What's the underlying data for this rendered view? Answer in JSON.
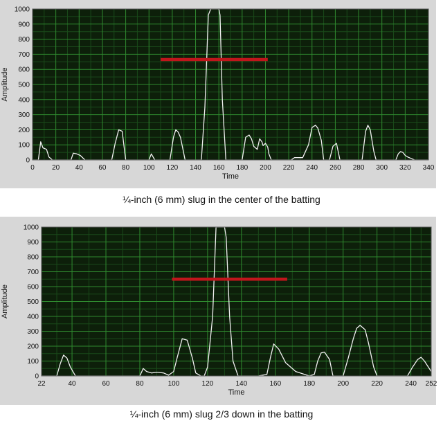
{
  "colors": {
    "panel_bg": "#d7d7d7",
    "plot_bg": "#0d1f0a",
    "grid_major": "#2f8a2f",
    "grid_minor": "#1a4a1a",
    "trace": "#f0f0f0",
    "threshold": "#c0161c"
  },
  "chart_data": [
    {
      "type": "line",
      "title": "",
      "xlabel": "Time",
      "ylabel": "Amplitude",
      "xlim": [
        0,
        340
      ],
      "ylim": [
        0,
        1000
      ],
      "xticks": [
        0,
        20,
        40,
        60,
        80,
        100,
        120,
        140,
        160,
        180,
        200,
        220,
        240,
        260,
        280,
        300,
        320,
        340
      ],
      "yticks": [
        0,
        100,
        200,
        300,
        400,
        500,
        600,
        700,
        800,
        900,
        1000
      ],
      "grid": true,
      "caption": "¼-inch (6 mm) slug in the center of the batting",
      "threshold": {
        "x_start": 110,
        "x_end": 202,
        "y": 665
      },
      "series": [
        {
          "x": [
            0,
            5,
            7,
            9,
            12,
            14,
            17,
            22,
            33,
            35,
            38,
            41,
            45,
            68,
            71,
            74,
            77,
            80,
            100,
            102,
            105,
            118,
            121,
            123,
            125,
            127,
            131,
            145,
            148,
            151,
            153,
            154,
            158,
            160,
            161,
            163,
            166,
            168,
            180,
            183,
            186,
            188,
            190,
            193,
            195,
            197,
            198,
            200,
            202,
            203,
            205,
            206,
            208,
            222,
            225,
            232,
            237,
            240,
            243,
            245,
            248,
            250,
            255,
            258,
            261,
            264,
            283,
            286,
            288,
            290,
            293,
            295,
            312,
            314,
            316,
            318,
            320,
            322,
            325,
            328,
            340
          ],
          "y": [
            0,
            0,
            120,
            80,
            70,
            20,
            0,
            0,
            0,
            45,
            40,
            30,
            0,
            0,
            110,
            200,
            190,
            0,
            0,
            40,
            0,
            0,
            150,
            200,
            185,
            150,
            0,
            0,
            350,
            960,
            1000,
            1000,
            1000,
            1000,
            960,
            400,
            0,
            0,
            0,
            150,
            165,
            140,
            90,
            70,
            140,
            120,
            95,
            110,
            85,
            40,
            0,
            0,
            0,
            0,
            15,
            15,
            100,
            215,
            230,
            210,
            130,
            0,
            0,
            90,
            110,
            0,
            0,
            190,
            230,
            200,
            60,
            0,
            0,
            40,
            55,
            50,
            30,
            20,
            10,
            0,
            0
          ]
        }
      ]
    },
    {
      "type": "line",
      "title": "",
      "xlabel": "Time",
      "ylabel": "Amplitude",
      "xlim": [
        22,
        252
      ],
      "ylim": [
        0,
        1000
      ],
      "xticks": [
        22,
        40,
        60,
        80,
        100,
        120,
        140,
        160,
        180,
        200,
        220,
        240,
        252
      ],
      "yticks": [
        0,
        100,
        200,
        300,
        400,
        500,
        600,
        700,
        800,
        900,
        1000
      ],
      "grid": true,
      "caption": "¼-inch (6 mm) slug 2/3 down in the batting",
      "threshold": {
        "x_start": 99,
        "x_end": 167,
        "y": 650
      },
      "series": [
        {
          "x": [
            22,
            31,
            33,
            35,
            37,
            39,
            42,
            80,
            82,
            84,
            87,
            90,
            94,
            97,
            100,
            102,
            105,
            108,
            111,
            113,
            116,
            118,
            120,
            123,
            125,
            127,
            130,
            131,
            133,
            135,
            138,
            150,
            155,
            157,
            159,
            162,
            166,
            172,
            180,
            183,
            185,
            187,
            189,
            192,
            194,
            200,
            203,
            206,
            208,
            210,
            213,
            215,
            218,
            220,
            225,
            238,
            241,
            244,
            246,
            248,
            252
          ],
          "y": [
            0,
            0,
            80,
            140,
            120,
            60,
            0,
            0,
            50,
            30,
            20,
            25,
            20,
            5,
            30,
            120,
            250,
            240,
            120,
            20,
            0,
            0,
            60,
            400,
            1000,
            1000,
            1000,
            930,
            400,
            100,
            0,
            0,
            10,
            120,
            215,
            180,
            90,
            30,
            0,
            10,
            100,
            155,
            160,
            110,
            0,
            0,
            120,
            250,
            320,
            340,
            310,
            220,
            60,
            0,
            0,
            0,
            60,
            110,
            125,
            100,
            30
          ]
        }
      ]
    }
  ]
}
